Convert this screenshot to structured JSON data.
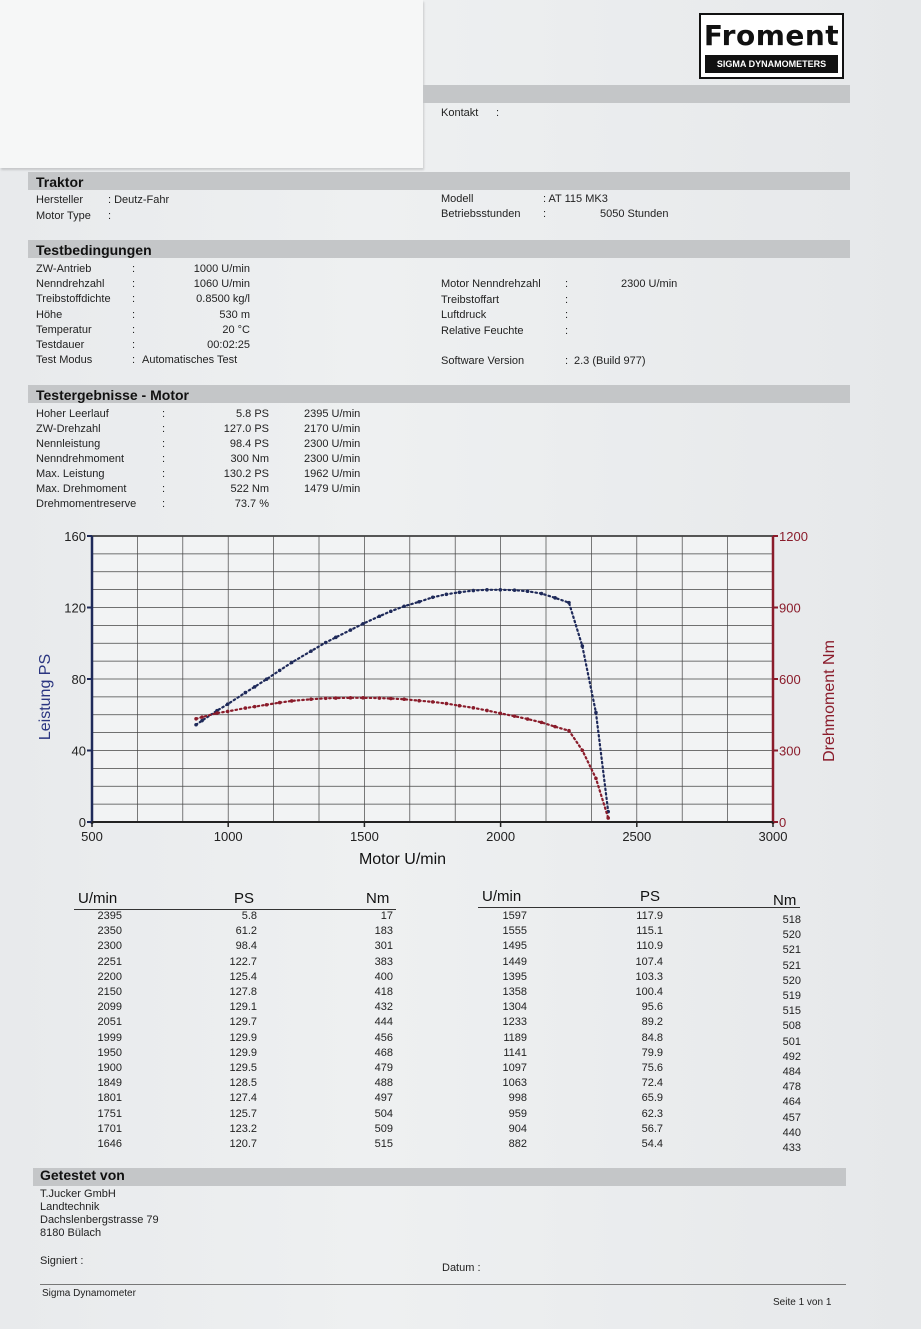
{
  "brand": {
    "name": "Froment",
    "tagline": "SIGMA DYNAMOMETERS"
  },
  "contact": {
    "label": "Kontakt",
    "sep": ":"
  },
  "traktor": {
    "title": "Traktor",
    "hersteller_label": "Hersteller",
    "hersteller_value": ": Deutz-Fahr",
    "motortype_label": "Motor Type",
    "motortype_value": ":",
    "modell_label": "Modell",
    "modell_value": ": AT 115 MK3",
    "betrieb_label": "Betriebsstunden",
    "betrieb_sep": ":",
    "betrieb_value": "5050 Stunden"
  },
  "testbedingungen": {
    "title": "Testbedingungen",
    "left": [
      {
        "label": "ZW-Antrieb",
        "value": "1000 U/min"
      },
      {
        "label": "Nenndrehzahl",
        "value": "1060 U/min"
      },
      {
        "label": "Treibstoffdichte",
        "value": "0.8500 kg/l"
      },
      {
        "label": "Höhe",
        "value": "530 m"
      },
      {
        "label": "Temperatur",
        "value": "20 °C"
      },
      {
        "label": "Testdauer",
        "value": "00:02:25"
      },
      {
        "label": "Test Modus",
        "value": "Automatisches Test"
      }
    ],
    "right": [
      {
        "label": "Motor Nenndrehzahl",
        "value": "2300 U/min"
      },
      {
        "label": "Treibstoffart",
        "value": ""
      },
      {
        "label": "Luftdruck",
        "value": ""
      },
      {
        "label": "Relative Feuchte",
        "value": ""
      },
      {
        "label": "Software Version",
        "value": "2.3 (Build 977)"
      }
    ]
  },
  "ergebnisse": {
    "title": "Testergebnisse - Motor",
    "rows": [
      {
        "label": "Hoher Leerlauf",
        "value": "5.8 PS",
        "rpm": "2395 U/min"
      },
      {
        "label": "ZW-Drehzahl",
        "value": "127.0 PS",
        "rpm": "2170 U/min"
      },
      {
        "label": "Nennleistung",
        "value": "98.4 PS",
        "rpm": "2300 U/min"
      },
      {
        "label": "Nenndrehmoment",
        "value": "300 Nm",
        "rpm": "2300 U/min"
      },
      {
        "label": "Max. Leistung",
        "value": "130.2 PS",
        "rpm": "1962 U/min"
      },
      {
        "label": "Max. Drehmoment",
        "value": "522 Nm",
        "rpm": "1479 U/min"
      },
      {
        "label": "Drehmomentreserve",
        "value": "73.7 %",
        "rpm": ""
      }
    ]
  },
  "chart_data": {
    "type": "scatter",
    "xlabel": "Motor U/min",
    "ylabel": "Leistung PS",
    "y2label": "Drehmoment Nm",
    "xlim": [
      500,
      3000
    ],
    "ylim": [
      0,
      160
    ],
    "y2lim": [
      0,
      1200
    ],
    "xticks": [
      "500",
      "1000",
      "1500",
      "2000",
      "2500",
      "3000"
    ],
    "yticks": [
      "0",
      "40",
      "80",
      "120",
      "160"
    ],
    "y2ticks": [
      "0",
      "300",
      "600",
      "900",
      "1200"
    ],
    "grid": true,
    "colors": {
      "power": "#1f2a5a",
      "torque": "#8a1c2b"
    },
    "series": [
      {
        "axis": "left",
        "x": [
          882,
          904,
          959,
          998,
          1063,
          1097,
          1141,
          1189,
          1233,
          1304,
          1358,
          1395,
          1449,
          1495,
          1555,
          1597,
          1646,
          1701,
          1751,
          1801,
          1849,
          1900,
          1950,
          1999,
          2051,
          2099,
          2150,
          2200,
          2251,
          2300,
          2350,
          2395
        ],
        "y": [
          54.4,
          56.7,
          62.3,
          65.9,
          72.4,
          75.6,
          79.9,
          84.8,
          89.2,
          95.6,
          100.4,
          103.3,
          107.4,
          110.9,
          115.1,
          117.9,
          120.7,
          123.2,
          125.7,
          127.4,
          128.5,
          129.5,
          129.9,
          129.9,
          129.7,
          129.1,
          127.8,
          125.4,
          122.7,
          98.4,
          61.2,
          5.8
        ]
      },
      {
        "axis": "right",
        "x": [
          882,
          904,
          959,
          998,
          1063,
          1097,
          1141,
          1189,
          1233,
          1304,
          1358,
          1395,
          1449,
          1495,
          1555,
          1597,
          1646,
          1701,
          1751,
          1801,
          1849,
          1900,
          1950,
          1999,
          2051,
          2099,
          2150,
          2200,
          2251,
          2300,
          2350,
          2395
        ],
        "y": [
          433,
          440,
          457,
          464,
          478,
          484,
          492,
          501,
          508,
          515,
          519,
          520,
          521,
          521,
          520,
          518,
          515,
          509,
          504,
          497,
          488,
          479,
          468,
          456,
          444,
          432,
          418,
          400,
          383,
          301,
          183,
          17
        ]
      }
    ]
  },
  "table": {
    "headers": {
      "umin": "U/min",
      "ps": "PS",
      "nm": "Nm"
    },
    "left": [
      [
        "2395",
        "5.8",
        "17"
      ],
      [
        "2350",
        "61.2",
        "183"
      ],
      [
        "2300",
        "98.4",
        "301"
      ],
      [
        "2251",
        "122.7",
        "383"
      ],
      [
        "2200",
        "125.4",
        "400"
      ],
      [
        "2150",
        "127.8",
        "418"
      ],
      [
        "2099",
        "129.1",
        "432"
      ],
      [
        "2051",
        "129.7",
        "444"
      ],
      [
        "1999",
        "129.9",
        "456"
      ],
      [
        "1950",
        "129.9",
        "468"
      ],
      [
        "1900",
        "129.5",
        "479"
      ],
      [
        "1849",
        "128.5",
        "488"
      ],
      [
        "1801",
        "127.4",
        "497"
      ],
      [
        "1751",
        "125.7",
        "504"
      ],
      [
        "1701",
        "123.2",
        "509"
      ],
      [
        "1646",
        "120.7",
        "515"
      ]
    ],
    "right": [
      [
        "1597",
        "117.9",
        "518"
      ],
      [
        "1555",
        "115.1",
        "520"
      ],
      [
        "1495",
        "110.9",
        "521"
      ],
      [
        "1449",
        "107.4",
        "521"
      ],
      [
        "1395",
        "103.3",
        "520"
      ],
      [
        "1358",
        "100.4",
        "519"
      ],
      [
        "1304",
        "95.6",
        "515"
      ],
      [
        "1233",
        "89.2",
        "508"
      ],
      [
        "1189",
        "84.8",
        "501"
      ],
      [
        "1141",
        "79.9",
        "492"
      ],
      [
        "1097",
        "75.6",
        "484"
      ],
      [
        "1063",
        "72.4",
        "478"
      ],
      [
        "998",
        "65.9",
        "464"
      ],
      [
        "959",
        "62.3",
        "457"
      ],
      [
        "904",
        "56.7",
        "440"
      ],
      [
        "882",
        "54.4",
        "433"
      ]
    ]
  },
  "getestet": {
    "title": "Getestet von",
    "lines": [
      "T.Jucker GmbH",
      "Landtechnik",
      "Dachslenbergstrasse 79",
      "8180 Bülach"
    ],
    "signiert": "Signiert   :",
    "datum": "Datum   :"
  },
  "footer": {
    "left": "Sigma Dynamometer",
    "right": "Seite 1 von 1"
  }
}
